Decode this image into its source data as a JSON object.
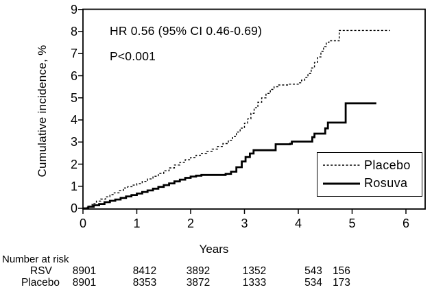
{
  "colors": {
    "line": "#000000",
    "background": "#ffffff"
  },
  "chart_data": {
    "type": "line",
    "subtype": "kaplan-meier-step",
    "title": "",
    "xlabel": "Years",
    "ylabel": "Cumulative incidence, %",
    "xlim": [
      0,
      6
    ],
    "ylim": [
      0,
      9
    ],
    "x_ticks": [
      "0",
      "1",
      "2",
      "3",
      "4",
      "5",
      "6"
    ],
    "y_ticks": [
      "0",
      "1",
      "2",
      "3",
      "4",
      "5",
      "6",
      "7",
      "8",
      "9"
    ],
    "grid": false,
    "legend_position": "lower right",
    "annotations": [
      "HR 0.56 (95% CI 0.46-0.69)",
      "P<0.001"
    ],
    "series": [
      {
        "name": "Placebo",
        "style": "dashed",
        "points": [
          [
            0,
            0
          ],
          [
            0.08,
            0.1
          ],
          [
            0.17,
            0.22
          ],
          [
            0.25,
            0.33
          ],
          [
            0.33,
            0.42
          ],
          [
            0.42,
            0.52
          ],
          [
            0.5,
            0.62
          ],
          [
            0.58,
            0.7
          ],
          [
            0.67,
            0.8
          ],
          [
            0.75,
            0.92
          ],
          [
            0.83,
            0.98
          ],
          [
            0.92,
            1.05
          ],
          [
            1,
            1.12
          ],
          [
            1.1,
            1.22
          ],
          [
            1.2,
            1.33
          ],
          [
            1.3,
            1.45
          ],
          [
            1.4,
            1.58
          ],
          [
            1.5,
            1.7
          ],
          [
            1.6,
            1.83
          ],
          [
            1.7,
            1.96
          ],
          [
            1.8,
            2.08
          ],
          [
            1.9,
            2.2
          ],
          [
            2,
            2.3
          ],
          [
            2.1,
            2.4
          ],
          [
            2.2,
            2.48
          ],
          [
            2.3,
            2.57
          ],
          [
            2.4,
            2.68
          ],
          [
            2.5,
            2.8
          ],
          [
            2.6,
            2.93
          ],
          [
            2.7,
            3.08
          ],
          [
            2.78,
            3.25
          ],
          [
            2.85,
            3.45
          ],
          [
            2.92,
            3.63
          ],
          [
            3,
            3.85
          ],
          [
            3.06,
            4.05
          ],
          [
            3.12,
            4.3
          ],
          [
            3.18,
            4.55
          ],
          [
            3.25,
            4.8
          ],
          [
            3.32,
            5.0
          ],
          [
            3.4,
            5.2
          ],
          [
            3.48,
            5.38
          ],
          [
            3.55,
            5.5
          ],
          [
            3.62,
            5.58
          ],
          [
            3.8,
            5.62
          ],
          [
            4,
            5.68
          ],
          [
            4.06,
            5.8
          ],
          [
            4.12,
            5.92
          ],
          [
            4.18,
            6.1
          ],
          [
            4.24,
            6.35
          ],
          [
            4.3,
            6.6
          ],
          [
            4.36,
            6.85
          ],
          [
            4.42,
            7.1
          ],
          [
            4.47,
            7.32
          ],
          [
            4.52,
            7.5
          ],
          [
            4.57,
            7.58
          ],
          [
            4.73,
            7.58
          ],
          [
            4.76,
            8.05
          ],
          [
            5.7,
            8.05
          ]
        ]
      },
      {
        "name": "Rosuva",
        "style": "solid",
        "points": [
          [
            0,
            0
          ],
          [
            0.1,
            0.07
          ],
          [
            0.2,
            0.14
          ],
          [
            0.3,
            0.2
          ],
          [
            0.4,
            0.28
          ],
          [
            0.5,
            0.34
          ],
          [
            0.6,
            0.4
          ],
          [
            0.7,
            0.47
          ],
          [
            0.8,
            0.54
          ],
          [
            0.9,
            0.6
          ],
          [
            1,
            0.67
          ],
          [
            1.1,
            0.74
          ],
          [
            1.2,
            0.81
          ],
          [
            1.3,
            0.89
          ],
          [
            1.4,
            0.97
          ],
          [
            1.5,
            1.05
          ],
          [
            1.6,
            1.13
          ],
          [
            1.7,
            1.22
          ],
          [
            1.8,
            1.3
          ],
          [
            1.9,
            1.38
          ],
          [
            2,
            1.44
          ],
          [
            2.1,
            1.48
          ],
          [
            2.2,
            1.51
          ],
          [
            2.65,
            1.56
          ],
          [
            2.75,
            1.66
          ],
          [
            2.85,
            1.86
          ],
          [
            2.95,
            2.12
          ],
          [
            3.02,
            2.32
          ],
          [
            3.1,
            2.48
          ],
          [
            3.17,
            2.63
          ],
          [
            3.55,
            2.63
          ],
          [
            3.58,
            2.9
          ],
          [
            3.85,
            2.92
          ],
          [
            3.88,
            3.02
          ],
          [
            4.22,
            3.02
          ],
          [
            4.26,
            3.22
          ],
          [
            4.3,
            3.38
          ],
          [
            4.45,
            3.38
          ],
          [
            4.5,
            3.62
          ],
          [
            4.55,
            3.88
          ],
          [
            4.85,
            3.88
          ],
          [
            4.88,
            4.75
          ],
          [
            5.45,
            4.75
          ]
        ]
      }
    ]
  },
  "legend": {
    "items": [
      {
        "label": "Placebo",
        "style": "dashed"
      },
      {
        "label": "Rosuva",
        "style": "solid"
      }
    ]
  },
  "risk_table": {
    "header": "Number at risk",
    "rows": [
      {
        "label": "RSV",
        "values": [
          "8901",
          "8412",
          "3892",
          "1352",
          "543",
          "156"
        ]
      },
      {
        "label": "Placebo",
        "values": [
          "8901",
          "8353",
          "3872",
          "1333",
          "534",
          "173"
        ]
      }
    ]
  }
}
